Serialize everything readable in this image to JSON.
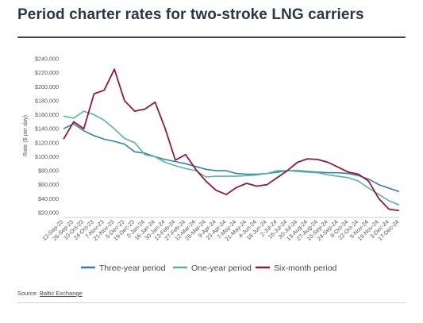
{
  "title": "Period charter rates for two-stroke LNG carriers",
  "source": {
    "label": "Source:",
    "name": "Baltic Exchange"
  },
  "colors": {
    "three_year": "#2f7fb7",
    "one_year": "#5cb39a",
    "six_month": "#8f1a3b",
    "axis": "#cccccc",
    "title": "#2b3748"
  },
  "chart_data": {
    "type": "line",
    "title": "Period charter rates for two-stroke LNG carriers",
    "xlabel": "",
    "ylabel": "Rate ($ per day)",
    "ylim": [
      20000,
      240000
    ],
    "yticks": [
      "$20,000",
      "$40,000",
      "$60,000",
      "$80,000",
      "$100,000",
      "$120,000",
      "$140,000",
      "$160,000",
      "$180,000",
      "$200,000",
      "$220,000",
      "$240,000"
    ],
    "ytick_values": [
      20000,
      40000,
      60000,
      80000,
      100000,
      120000,
      140000,
      160000,
      180000,
      200000,
      220000,
      240000
    ],
    "x": [
      "12-Sep-23",
      "26-Sep-23",
      "10-Oct-23",
      "24-Oct-23",
      "7-Nov-23",
      "21-Nov-23",
      "5-Dec-23",
      "19-Dec-23",
      "2-Jan-24",
      "16-Jan-24",
      "30-Jan-24",
      "13-Feb-24",
      "27-Feb-24",
      "12-Mar-24",
      "26-Mar-24",
      "9-Apr-24",
      "23-Apr-24",
      "7-May-24",
      "21-May-24",
      "4-Jun-24",
      "18-Jun-24",
      "2-Jul-24",
      "16-Jul-24",
      "30-Jul-24",
      "13-Aug-24",
      "27-Aug-24",
      "10-Sep-24",
      "24-Sep-24",
      "8-Oct-24",
      "22-Oct-24",
      "5-Nov-24",
      "19-Nov-24",
      "3-Dec-24",
      "17-Dec-24"
    ],
    "xticks": [
      "12-Sep-23",
      "26-Sep-23",
      "10-Oct-23",
      "24-Oct-23",
      "7-Nov-23",
      "21-Nov-23",
      "5-Dec-23",
      "19-Dec-23",
      "2-Jan-24",
      "16-Jan-24",
      "30-Jan-24",
      "13-Feb-24",
      "27-Feb-24",
      "12-Mar-24",
      "26-Mar-24",
      "9-Apr-24",
      "23-Apr-24",
      "7-May-24",
      "21-May-24",
      "4-Jun-24",
      "18-Jun-24",
      "2-Jul-24",
      "16-Jul-24",
      "30-Jul-24",
      "13-Aug-24",
      "27-Aug-24",
      "10-Sep-24",
      "24-Sep-24",
      "8-Oct-24",
      "22-Oct-24",
      "5-Nov-24",
      "19-Nov-24",
      "3-Dec-24",
      "17-Dec-24"
    ],
    "series": [
      {
        "name": "Three-year period",
        "color": "#2f7fb7",
        "values": [
          140000,
          147000,
          137000,
          130000,
          125000,
          122000,
          118000,
          107000,
          105000,
          100000,
          96000,
          93000,
          90000,
          86000,
          82000,
          80000,
          80000,
          76000,
          75000,
          75000,
          76000,
          78000,
          80000,
          80000,
          79000,
          78000,
          77000,
          77000,
          76000,
          73000,
          68000,
          60000,
          55000,
          50000
        ]
      },
      {
        "name": "One-year period",
        "color": "#5cb39a",
        "values": [
          158000,
          155000,
          165000,
          160000,
          152000,
          140000,
          126000,
          120000,
          103000,
          100000,
          92000,
          87000,
          83000,
          80000,
          71000,
          72000,
          72000,
          72000,
          73000,
          74000,
          76000,
          80000,
          80000,
          79000,
          78000,
          77000,
          74000,
          72000,
          70000,
          65000,
          55000,
          46000,
          37000,
          31000
        ]
      },
      {
        "name": "Six-month period",
        "color": "#8f1a3b",
        "values": [
          125000,
          150000,
          140000,
          190000,
          195000,
          225000,
          180000,
          165000,
          168000,
          178000,
          140000,
          95000,
          103000,
          82000,
          65000,
          52000,
          46000,
          56000,
          62000,
          58000,
          60000,
          70000,
          80000,
          92000,
          97000,
          96000,
          92000,
          85000,
          78000,
          75000,
          65000,
          40000,
          25000,
          23000
        ]
      }
    ],
    "legend_position": "bottom",
    "grid": false
  }
}
